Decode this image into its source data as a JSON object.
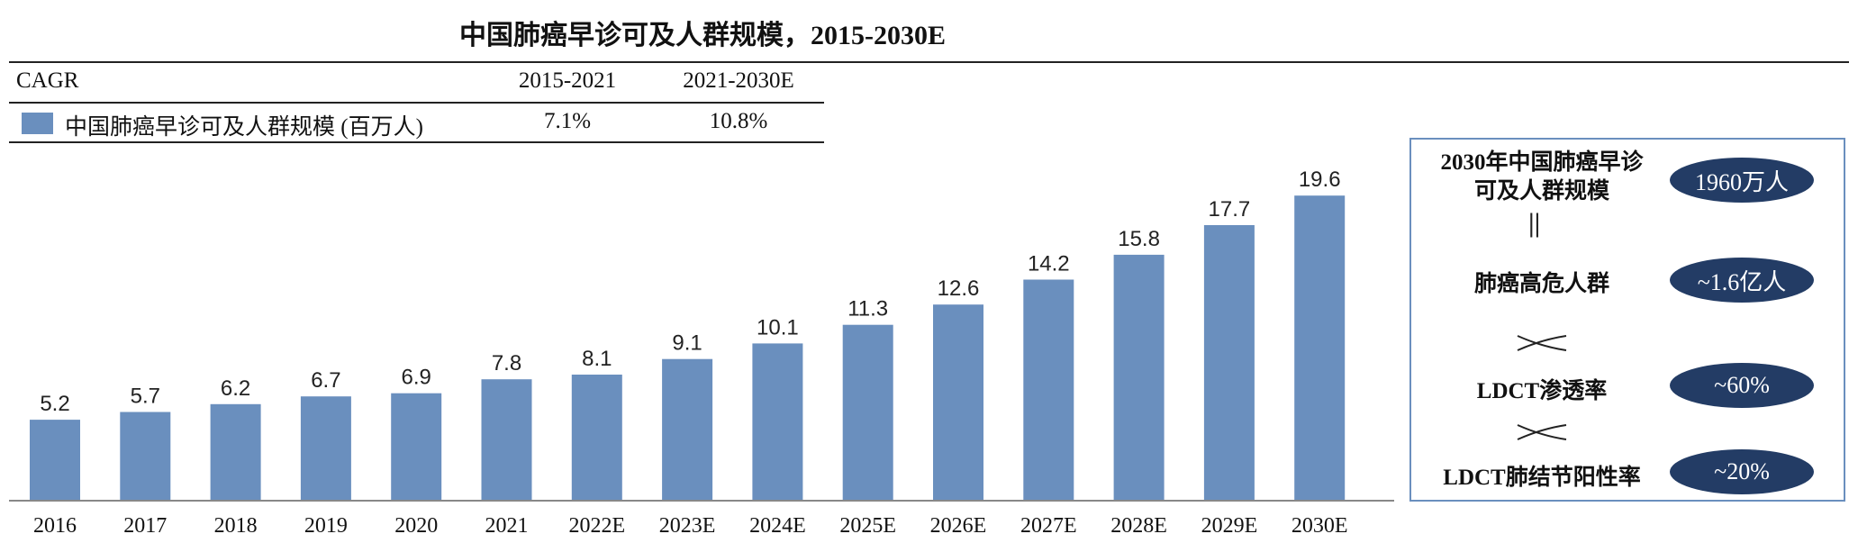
{
  "title": "中国肺癌早诊可及人群规模，2015-2030E",
  "cagr_table": {
    "header": [
      "CAGR",
      "2015-2021",
      "2021-2030E"
    ],
    "row": {
      "legend_label": "中国肺癌早诊可及人群规模 (百万人)",
      "values": [
        "7.1%",
        "10.8%"
      ]
    }
  },
  "chart_data": {
    "type": "bar",
    "title": "中国肺癌早诊可及人群规模，2015-2030E",
    "categories": [
      "2016",
      "2017",
      "2018",
      "2019",
      "2020",
      "2021",
      "2022E",
      "2023E",
      "2024E",
      "2025E",
      "2026E",
      "2027E",
      "2028E",
      "2029E",
      "2030E"
    ],
    "series": [
      {
        "name": "中国肺癌早诊可及人群规模 (百万人)",
        "values": [
          5.2,
          5.7,
          6.2,
          6.7,
          6.9,
          7.8,
          8.1,
          9.1,
          10.1,
          11.3,
          12.6,
          14.2,
          15.8,
          17.7,
          19.6
        ]
      }
    ],
    "data_labels": [
      "5.2",
      "5.7",
      "6.2",
      "6.7",
      "6.9",
      "7.8",
      "8.1",
      "9.1",
      "10.1",
      "11.3",
      "12.6",
      "14.2",
      "15.8",
      "17.7",
      "19.6"
    ],
    "ylim": [
      0,
      21
    ],
    "grid": false,
    "colors": {
      "bar": "#6a8fbe"
    }
  },
  "side_panel": {
    "rows": [
      {
        "label_line1": "2030年中国肺癌早诊",
        "label_line2": "可及人群规模",
        "value": "1960万人"
      },
      {
        "label": "肺癌高危人群",
        "value": "~1.6亿人"
      },
      {
        "label": "LDCT渗透率",
        "value": "~60%"
      },
      {
        "label": "LDCT肺结节阳性率",
        "value": "~20%"
      }
    ],
    "equals_symbol": "||",
    "colors": {
      "pill": "#233c65",
      "border": "#6a8fbe"
    }
  }
}
